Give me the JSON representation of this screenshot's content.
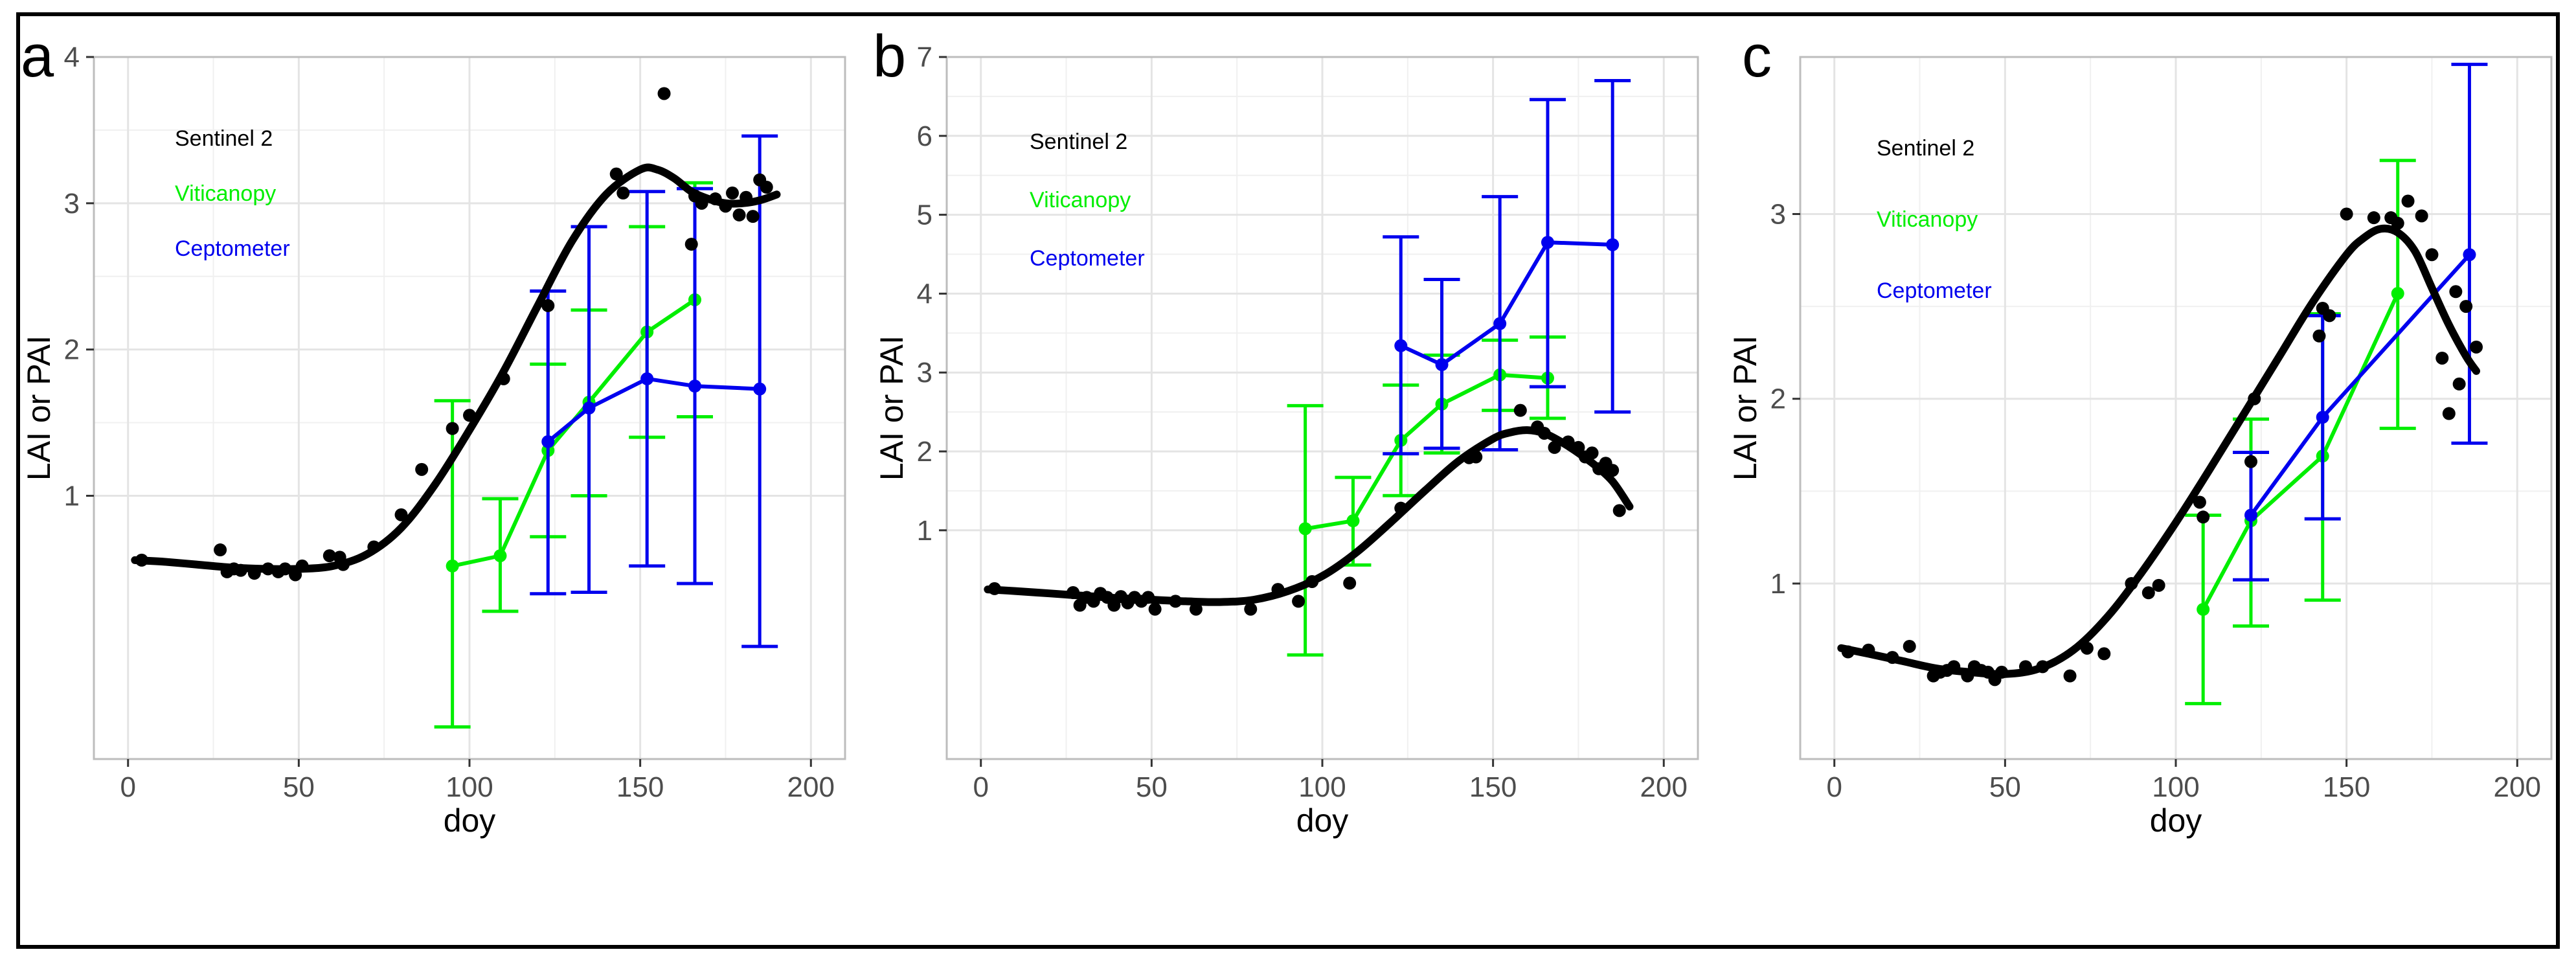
{
  "chart_data": [
    {
      "type": "line",
      "panel_label": "a",
      "xlabel": "doy",
      "ylabel": "LAI or PAI",
      "xlim": [
        -10,
        210
      ],
      "ylim": [
        -0.8,
        4.0
      ],
      "xticks": [
        0,
        50,
        100,
        150,
        200
      ],
      "yticks": [
        1,
        2,
        3,
        4
      ],
      "grid": true,
      "legend": [
        {
          "label": "Sentinel 2",
          "color": "#000000"
        },
        {
          "label": "Viticanopy",
          "color": "#00ee00"
        },
        {
          "label": "Ceptometer",
          "color": "#0000ee"
        }
      ],
      "sentinel_points": {
        "x": [
          4,
          27,
          29,
          31,
          33,
          37,
          41,
          44,
          46,
          49,
          51,
          59,
          62,
          63,
          72,
          80,
          86,
          95,
          100,
          110,
          123,
          143,
          145,
          157,
          165,
          166,
          168,
          172,
          175,
          177,
          179,
          181,
          183,
          185,
          187
        ],
        "y": [
          0.56,
          0.63,
          0.48,
          0.5,
          0.49,
          0.47,
          0.5,
          0.48,
          0.5,
          0.46,
          0.52,
          0.59,
          0.58,
          0.53,
          0.65,
          0.87,
          1.18,
          1.46,
          1.55,
          1.8,
          2.3,
          3.2,
          3.07,
          3.75,
          2.72,
          3.05,
          3.0,
          3.03,
          2.98,
          3.07,
          2.92,
          3.04,
          2.91,
          3.16,
          3.11
        ]
      },
      "sentinel_fit": {
        "x": [
          2,
          10,
          20,
          30,
          40,
          50,
          60,
          70,
          80,
          90,
          100,
          110,
          120,
          130,
          140,
          150,
          155,
          160,
          165,
          170,
          175,
          180,
          185,
          190
        ],
        "y": [
          0.56,
          0.55,
          0.53,
          0.51,
          0.5,
          0.5,
          0.52,
          0.6,
          0.78,
          1.08,
          1.45,
          1.85,
          2.3,
          2.74,
          3.06,
          3.23,
          3.23,
          3.17,
          3.08,
          3.03,
          3.0,
          3.0,
          3.02,
          3.06
        ]
      },
      "series": [
        {
          "name": "Viticanopy",
          "color": "#00ee00",
          "x": [
            95,
            109,
            123,
            135,
            152,
            166
          ],
          "y": [
            0.52,
            0.59,
            1.31,
            1.64,
            2.12,
            2.34
          ],
          "err_low": [
            -0.58,
            0.21,
            0.72,
            1.0,
            1.4,
            1.54
          ],
          "err_high": [
            1.65,
            0.98,
            1.9,
            2.27,
            2.84,
            3.14
          ]
        },
        {
          "name": "Ceptometer",
          "color": "#0000ee",
          "x": [
            123,
            135,
            152,
            166,
            185
          ],
          "y": [
            1.37,
            1.6,
            1.8,
            1.75,
            1.73
          ],
          "err_low": [
            0.33,
            0.34,
            0.52,
            0.4,
            -0.03
          ],
          "err_high": [
            2.4,
            2.84,
            3.08,
            3.1,
            3.46
          ]
        }
      ]
    },
    {
      "type": "line",
      "panel_label": "b",
      "xlabel": "doy",
      "ylabel": "LAI or PAI",
      "xlim": [
        -10,
        210
      ],
      "ylim": [
        -1.9,
        7.0
      ],
      "xticks": [
        0,
        50,
        100,
        150,
        200
      ],
      "yticks": [
        1,
        2,
        3,
        4,
        5,
        6,
        7
      ],
      "grid": true,
      "legend": [
        {
          "label": "Sentinel 2",
          "color": "#000000"
        },
        {
          "label": "Viticanopy",
          "color": "#00ee00"
        },
        {
          "label": "Ceptometer",
          "color": "#0000ee"
        }
      ],
      "sentinel_points": {
        "x": [
          4,
          27,
          29,
          31,
          33,
          35,
          37,
          39,
          41,
          43,
          45,
          47,
          49,
          51,
          57,
          63,
          79,
          87,
          93,
          97,
          108,
          123,
          143,
          145,
          158,
          163,
          165,
          168,
          172,
          175,
          177,
          179,
          181,
          183,
          185,
          187
        ],
        "y": [
          0.26,
          0.21,
          0.05,
          0.15,
          0.1,
          0.2,
          0.15,
          0.05,
          0.16,
          0.08,
          0.15,
          0.1,
          0.15,
          0.0,
          0.1,
          0.0,
          0.0,
          0.25,
          0.1,
          0.35,
          0.33,
          1.28,
          1.92,
          1.93,
          2.52,
          2.31,
          2.23,
          2.05,
          2.12,
          2.05,
          1.93,
          1.98,
          1.78,
          1.85,
          1.76,
          1.25
        ]
      },
      "sentinel_fit": {
        "x": [
          2,
          10,
          20,
          30,
          40,
          50,
          60,
          70,
          80,
          90,
          100,
          110,
          120,
          130,
          140,
          150,
          155,
          160,
          165,
          170,
          175,
          180,
          185,
          190
        ],
        "y": [
          0.25,
          0.23,
          0.2,
          0.17,
          0.14,
          0.12,
          0.1,
          0.09,
          0.12,
          0.23,
          0.42,
          0.72,
          1.1,
          1.5,
          1.88,
          2.16,
          2.24,
          2.27,
          2.23,
          2.12,
          1.98,
          1.82,
          1.62,
          1.3
        ]
      },
      "series": [
        {
          "name": "Viticanopy",
          "color": "#00ee00",
          "x": [
            95,
            109,
            123,
            135,
            152,
            166
          ],
          "y": [
            1.02,
            1.12,
            2.14,
            2.6,
            2.97,
            2.93
          ],
          "err_low": [
            -0.58,
            0.56,
            1.44,
            1.98,
            2.52,
            2.42
          ],
          "err_high": [
            2.58,
            1.67,
            2.84,
            3.22,
            3.41,
            3.45
          ]
        },
        {
          "name": "Ceptometer",
          "color": "#0000ee",
          "x": [
            123,
            135,
            152,
            166,
            185
          ],
          "y": [
            3.34,
            3.1,
            3.62,
            4.65,
            4.62
          ],
          "err_low": [
            1.97,
            2.04,
            2.02,
            2.82,
            2.5
          ],
          "err_high": [
            4.72,
            4.18,
            5.23,
            6.46,
            6.7
          ]
        }
      ]
    },
    {
      "type": "line",
      "panel_label": "c",
      "xlabel": "doy",
      "ylabel": "LAI or PAI",
      "xlim": [
        -10,
        210
      ],
      "ylim": [
        0.05,
        3.85
      ],
      "xticks": [
        0,
        50,
        100,
        150,
        200
      ],
      "yticks": [
        1,
        2,
        3
      ],
      "grid": true,
      "legend": [
        {
          "label": "Sentinel 2",
          "color": "#000000"
        },
        {
          "label": "Viticanopy",
          "color": "#00ee00"
        },
        {
          "label": "Ceptometer",
          "color": "#0000ee"
        }
      ],
      "sentinel_points": {
        "x": [
          4,
          10,
          17,
          22,
          29,
          31,
          33,
          35,
          39,
          41,
          43,
          45,
          47,
          49,
          56,
          61,
          69,
          74,
          79,
          87,
          92,
          95,
          107,
          108,
          122,
          123,
          142,
          143,
          145,
          150,
          158,
          163,
          165,
          168,
          172,
          175,
          178,
          180,
          182,
          183,
          185,
          188
        ],
        "y": [
          0.63,
          0.64,
          0.6,
          0.66,
          0.5,
          0.52,
          0.53,
          0.55,
          0.5,
          0.55,
          0.53,
          0.52,
          0.48,
          0.52,
          0.55,
          0.55,
          0.5,
          0.65,
          0.62,
          1.0,
          0.95,
          0.99,
          1.44,
          1.36,
          1.66,
          2.0,
          2.34,
          2.49,
          2.45,
          3.0,
          2.98,
          2.98,
          2.95,
          3.07,
          2.99,
          2.78,
          2.22,
          1.92,
          2.58,
          2.08,
          2.5,
          2.28
        ]
      },
      "sentinel_fit": {
        "x": [
          2,
          10,
          20,
          30,
          40,
          50,
          60,
          70,
          80,
          90,
          100,
          110,
          120,
          130,
          140,
          150,
          155,
          160,
          165,
          170,
          175,
          180,
          185,
          188
        ],
        "y": [
          0.65,
          0.62,
          0.58,
          0.54,
          0.52,
          0.51,
          0.54,
          0.64,
          0.82,
          1.06,
          1.33,
          1.62,
          1.92,
          2.22,
          2.52,
          2.78,
          2.87,
          2.92,
          2.9,
          2.8,
          2.6,
          2.4,
          2.23,
          2.15
        ]
      },
      "series": [
        {
          "name": "Viticanopy",
          "color": "#00ee00",
          "x": [
            108,
            122,
            143,
            165
          ],
          "y": [
            0.86,
            1.34,
            1.69,
            2.57
          ],
          "err_low": [
            0.35,
            0.77,
            0.91,
            1.84
          ],
          "err_high": [
            1.37,
            1.89,
            2.46,
            3.29
          ]
        },
        {
          "name": "Ceptometer",
          "color": "#0000ee",
          "x": [
            122,
            143,
            186
          ],
          "y": [
            1.37,
            1.9,
            2.78
          ],
          "err_low": [
            1.02,
            1.35,
            1.76
          ],
          "err_high": [
            1.71,
            2.45,
            3.81
          ]
        }
      ]
    }
  ]
}
